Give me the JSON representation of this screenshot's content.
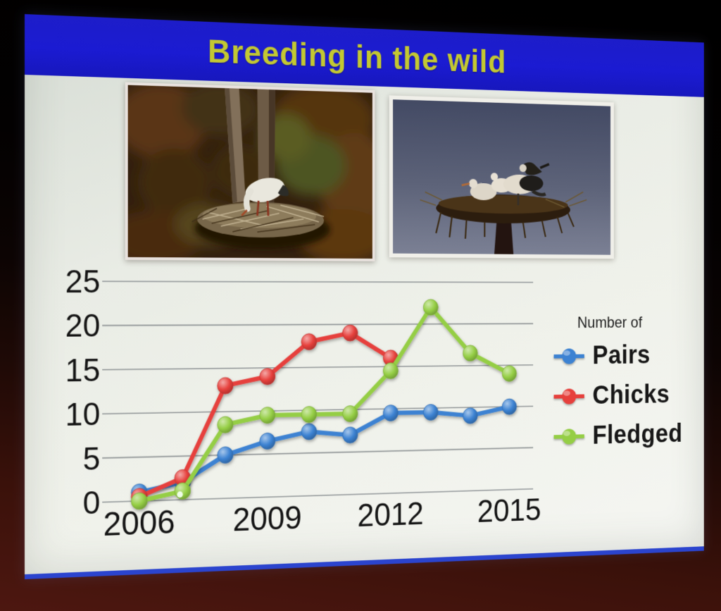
{
  "slide": {
    "title": "Breeding in the wild",
    "colors": {
      "title_bar": "#1b1bcd",
      "title_text": "#c3c832",
      "slide_bottom_edge": "#2b44ce",
      "grid_line": "#8d9294"
    },
    "legend": {
      "title": "Number of",
      "items": [
        {
          "label": "Pairs",
          "color": "#3c82d2"
        },
        {
          "label": "Chicks",
          "color": "#e6403c"
        },
        {
          "label": "Fledged",
          "color": "#95ce45"
        }
      ]
    },
    "pointer_dot": {
      "series": "Fledged",
      "year": 2007
    }
  },
  "chart_data": {
    "type": "line",
    "title": "",
    "xlabel": "",
    "ylabel": "",
    "x": [
      2006,
      2007,
      2008,
      2009,
      2010,
      2011,
      2012,
      2013,
      2014,
      2015
    ],
    "x_tick_labels": [
      "2006",
      "2009",
      "2012",
      "2015"
    ],
    "y_ticks": [
      0,
      5,
      10,
      15,
      20,
      25
    ],
    "ylim": [
      0,
      25
    ],
    "grid": true,
    "legend_title": "Number of",
    "legend_position": "right",
    "series": [
      {
        "name": "Pairs",
        "color": "#3c82d2",
        "values": [
          1,
          2,
          5,
          6.5,
          7.5,
          7,
          9.5,
          9.5,
          9,
          10
        ]
      },
      {
        "name": "Chicks",
        "color": "#e6403c",
        "values": [
          0.5,
          2.5,
          13,
          14,
          18,
          19,
          16,
          null,
          null,
          null
        ]
      },
      {
        "name": "Fledged",
        "color": "#95ce45",
        "values": [
          0,
          1,
          8.5,
          9.5,
          9.5,
          9.5,
          14.5,
          22,
          16.5,
          14
        ]
      }
    ]
  }
}
